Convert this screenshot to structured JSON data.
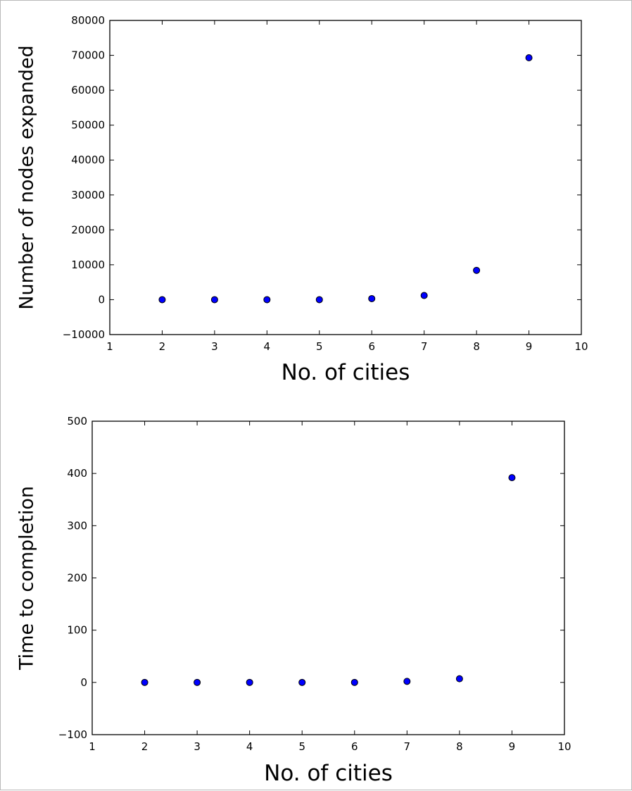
{
  "chart_data": [
    {
      "type": "scatter",
      "xlabel": "No. of cities",
      "ylabel": "Number of nodes expanded",
      "xlim": [
        1,
        10
      ],
      "ylim": [
        -10000,
        80000
      ],
      "xticks": [
        1,
        2,
        3,
        4,
        5,
        6,
        7,
        8,
        9,
        10
      ],
      "yticks": [
        -10000,
        0,
        10000,
        20000,
        30000,
        40000,
        50000,
        60000,
        70000,
        80000
      ],
      "x": [
        2,
        3,
        4,
        5,
        6,
        7,
        8,
        9
      ],
      "y": [
        0,
        0,
        0,
        0,
        300,
        1200,
        8400,
        69300
      ],
      "marker_color": "#0000ff",
      "grid": false
    },
    {
      "type": "scatter",
      "xlabel": "No. of cities",
      "ylabel": "Time to completion",
      "xlim": [
        1,
        10
      ],
      "ylim": [
        -100,
        500
      ],
      "xticks": [
        1,
        2,
        3,
        4,
        5,
        6,
        7,
        8,
        9,
        10
      ],
      "yticks": [
        -100,
        0,
        100,
        200,
        300,
        400,
        500
      ],
      "x": [
        2,
        3,
        4,
        5,
        6,
        7,
        8,
        9
      ],
      "y": [
        0,
        0,
        0,
        0,
        0,
        2,
        7,
        392
      ],
      "marker_color": "#0000ff",
      "grid": false
    }
  ]
}
